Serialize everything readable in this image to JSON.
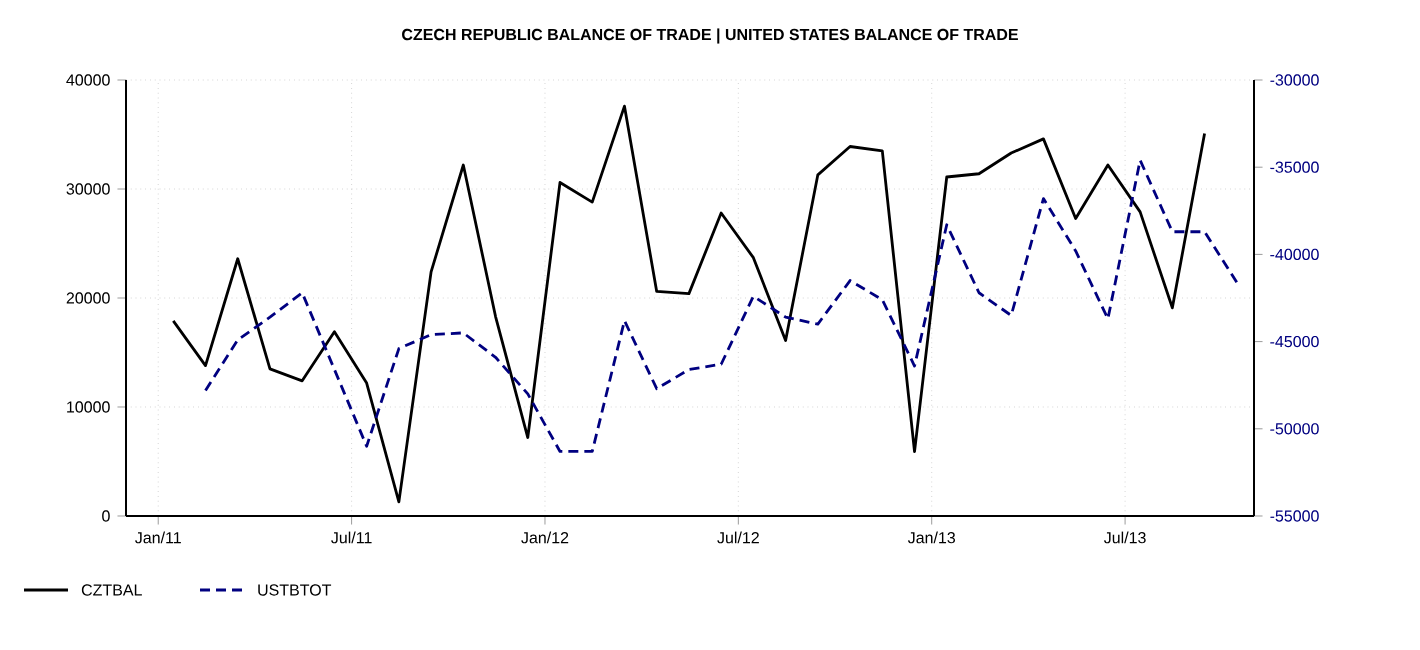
{
  "chart_data": {
    "type": "line",
    "title": "CZECH REPUBLIC BALANCE OF TRADE |  UNITED STATES BALANCE OF TRADE",
    "series": [
      {
        "name": "CZTBAL",
        "color": "#000000",
        "line_style": "solid",
        "x": [
          "2011-01-15",
          "2011-02-15",
          "2011-03-15",
          "2011-04-15",
          "2011-05-15",
          "2011-06-15",
          "2011-07-15",
          "2011-08-15",
          "2011-09-15",
          "2011-10-15",
          "2011-11-15",
          "2011-12-15",
          "2012-01-15",
          "2012-02-15",
          "2012-03-15",
          "2012-04-15",
          "2012-05-15",
          "2012-06-15",
          "2012-07-15",
          "2012-08-15",
          "2012-09-15",
          "2012-10-15",
          "2012-11-15",
          "2012-12-15",
          "2013-01-15",
          "2013-02-15",
          "2013-03-15",
          "2013-04-15",
          "2013-05-15",
          "2013-06-15",
          "2013-07-15",
          "2013-08-15",
          "2013-09-15"
        ],
        "values": [
          17900,
          13800,
          23600,
          13500,
          12400,
          16900,
          12200,
          1300,
          22400,
          32200,
          18300,
          7200,
          30600,
          28800,
          37600,
          20600,
          20400,
          27800,
          23700,
          16100,
          31300,
          33900,
          33500,
          5900,
          31100,
          31400,
          33300,
          34600,
          27300,
          32200,
          27900,
          19100,
          35100
        ]
      },
      {
        "name": "USTBTOT",
        "color": "#000080",
        "line_style": "dashed",
        "axis": "y2",
        "x": [
          "2011-02-15",
          "2011-03-15",
          "2011-04-15",
          "2011-05-15",
          "2011-06-15",
          "2011-07-15",
          "2011-08-15",
          "2011-09-15",
          "2011-10-15",
          "2011-11-15",
          "2011-12-15",
          "2012-01-15",
          "2012-02-15",
          "2012-03-15",
          "2012-04-15",
          "2012-05-15",
          "2012-06-15",
          "2012-07-15",
          "2012-08-15",
          "2012-09-15",
          "2012-10-15",
          "2012-11-15",
          "2012-12-15",
          "2013-01-15",
          "2013-02-15",
          "2013-03-15",
          "2013-04-15",
          "2013-05-15",
          "2013-06-15",
          "2013-07-15",
          "2013-08-15",
          "2013-09-15",
          "2013-10-15"
        ],
        "values": [
          -47800,
          -44900,
          -43600,
          -42200,
          -46600,
          -51000,
          -45400,
          -44600,
          -44500,
          -45900,
          -48000,
          -51300,
          -51300,
          -43800,
          -47700,
          -46600,
          -46300,
          -42400,
          -43600,
          -44000,
          -41500,
          -42600,
          -46400,
          -38300,
          -42200,
          -43500,
          -36800,
          -39800,
          -43700,
          -34600,
          -38700,
          -38700,
          -41600
        ]
      }
    ],
    "xlim": [
      "2010-12",
      "2013-11"
    ],
    "xticks": [
      {
        "value": "2011-01",
        "label": "Jan/11"
      },
      {
        "value": "2011-07",
        "label": "Jul/11"
      },
      {
        "value": "2012-01",
        "label": "Jan/12"
      },
      {
        "value": "2012-07",
        "label": "Jul/12"
      },
      {
        "value": "2013-01",
        "label": "Jan/13"
      },
      {
        "value": "2013-07",
        "label": "Jul/13"
      }
    ],
    "ylim": [
      0,
      40000
    ],
    "yticks": [
      0,
      10000,
      20000,
      30000,
      40000
    ],
    "y2lim": [
      -55000,
      -30000
    ],
    "y2ticks": [
      -55000,
      -50000,
      -45000,
      -40000,
      -35000,
      -30000
    ],
    "grid": true,
    "legend": "bottom left"
  }
}
